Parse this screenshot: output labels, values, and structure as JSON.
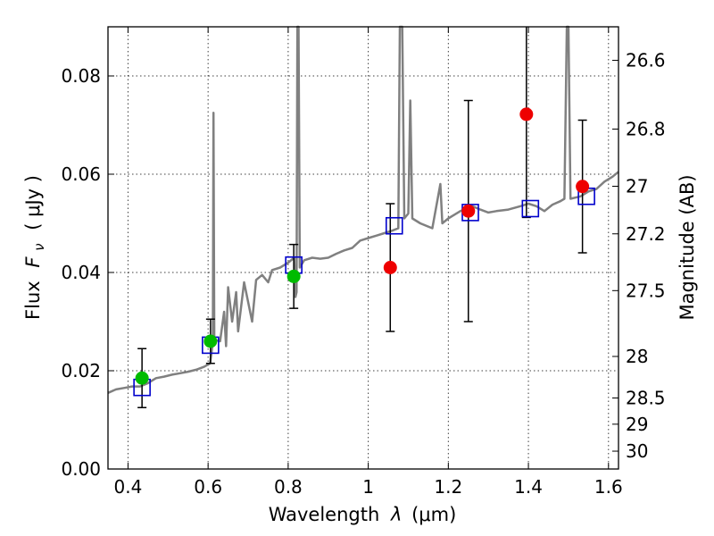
{
  "chart_data": {
    "type": "scatter",
    "xlabel_prefix": "Wavelength",
    "xlabel_symbol": "λ",
    "xlabel_unit": "(μm)",
    "ylabel_prefix": "Flux",
    "ylabel_symbol": "F",
    "ylabel_subscript": "ν",
    "ylabel_unit": "( μJy )",
    "y2label": "Magnitude (AB)",
    "xlim": [
      0.35,
      1.625
    ],
    "ylim": [
      0.0,
      0.09
    ],
    "grid": true,
    "x_ticks": [
      0.4,
      0.6,
      0.8,
      1.0,
      1.2,
      1.4,
      1.6
    ],
    "x_tick_labels": [
      "0.4",
      "0.6",
      "0.8",
      "1",
      "1.2",
      "1.4",
      "1.6"
    ],
    "y_ticks": [
      0.0,
      0.02,
      0.04,
      0.06,
      0.08
    ],
    "y_tick_labels": [
      "0.00",
      "0.02",
      "0.04",
      "0.06",
      "0.08"
    ],
    "y2_tick_labels": [
      "26.6",
      "26.8",
      "27",
      "27.2",
      "27.5",
      "28",
      "28.5",
      "29",
      "30"
    ],
    "colors": {
      "model": "#808080",
      "model_box": "#0000cc",
      "errorbar": "#000000",
      "detection": "#00bb00",
      "nondetection": "#ee0000"
    },
    "observed_points": [
      {
        "x": 0.435,
        "y": 0.0185,
        "yerr_low": 0.006,
        "yerr_high": 0.006,
        "group": "detection"
      },
      {
        "x": 0.606,
        "y": 0.026,
        "yerr_low": 0.0045,
        "yerr_high": 0.0045,
        "group": "detection"
      },
      {
        "x": 0.814,
        "y": 0.0392,
        "yerr_low": 0.0065,
        "yerr_high": 0.0065,
        "group": "detection"
      },
      {
        "x": 1.055,
        "y": 0.041,
        "yerr_low": 0.013,
        "yerr_high": 0.013,
        "group": "nondetection"
      },
      {
        "x": 1.25,
        "y": 0.0525,
        "yerr_low": 0.0225,
        "yerr_high": 0.0225,
        "group": "nondetection"
      },
      {
        "x": 1.395,
        "y": 0.0722,
        "yerr_low": 0.021,
        "yerr_high": 0.0215,
        "group": "nondetection"
      },
      {
        "x": 1.535,
        "y": 0.0575,
        "yerr_low": 0.0135,
        "yerr_high": 0.0135,
        "group": "nondetection"
      }
    ],
    "model_photometry": [
      {
        "x": 0.435,
        "y": 0.0166
      },
      {
        "x": 0.606,
        "y": 0.0252
      },
      {
        "x": 0.814,
        "y": 0.0415
      },
      {
        "x": 1.065,
        "y": 0.0495
      },
      {
        "x": 1.255,
        "y": 0.0522
      },
      {
        "x": 1.405,
        "y": 0.053
      },
      {
        "x": 1.545,
        "y": 0.0555
      }
    ],
    "model_spectrum": [
      [
        0.35,
        0.0155
      ],
      [
        0.37,
        0.0162
      ],
      [
        0.39,
        0.0165
      ],
      [
        0.41,
        0.0168
      ],
      [
        0.43,
        0.0168
      ],
      [
        0.45,
        0.0175
      ],
      [
        0.47,
        0.0185
      ],
      [
        0.49,
        0.0188
      ],
      [
        0.51,
        0.0192
      ],
      [
        0.53,
        0.0195
      ],
      [
        0.55,
        0.0198
      ],
      [
        0.57,
        0.0202
      ],
      [
        0.59,
        0.0208
      ],
      [
        0.605,
        0.0215
      ],
      [
        0.609,
        0.024
      ],
      [
        0.612,
        0.026
      ],
      [
        0.6135,
        0.0725
      ],
      [
        0.6155,
        0.0265
      ],
      [
        0.62,
        0.0262
      ],
      [
        0.63,
        0.026
      ],
      [
        0.64,
        0.032
      ],
      [
        0.645,
        0.025
      ],
      [
        0.65,
        0.037
      ],
      [
        0.66,
        0.03
      ],
      [
        0.67,
        0.036
      ],
      [
        0.675,
        0.028
      ],
      [
        0.69,
        0.038
      ],
      [
        0.7,
        0.034
      ],
      [
        0.71,
        0.03
      ],
      [
        0.72,
        0.0385
      ],
      [
        0.735,
        0.0395
      ],
      [
        0.75,
        0.038
      ],
      [
        0.76,
        0.0405
      ],
      [
        0.78,
        0.041
      ],
      [
        0.8,
        0.042
      ],
      [
        0.815,
        0.043
      ],
      [
        0.818,
        0.035
      ],
      [
        0.821,
        0.036
      ],
      [
        0.823,
        0.09
      ],
      [
        0.826,
        0.09
      ],
      [
        0.829,
        0.041
      ],
      [
        0.84,
        0.0425
      ],
      [
        0.86,
        0.043
      ],
      [
        0.88,
        0.0428
      ],
      [
        0.9,
        0.043
      ],
      [
        0.92,
        0.0438
      ],
      [
        0.94,
        0.0445
      ],
      [
        0.96,
        0.045
      ],
      [
        0.98,
        0.0465
      ],
      [
        1.0,
        0.047
      ],
      [
        1.02,
        0.0475
      ],
      [
        1.04,
        0.048
      ],
      [
        1.06,
        0.0485
      ],
      [
        1.075,
        0.049
      ],
      [
        1.079,
        0.09
      ],
      [
        1.085,
        0.09
      ],
      [
        1.09,
        0.051
      ],
      [
        1.1,
        0.052
      ],
      [
        1.105,
        0.075
      ],
      [
        1.11,
        0.051
      ],
      [
        1.13,
        0.05
      ],
      [
        1.16,
        0.049
      ],
      [
        1.18,
        0.058
      ],
      [
        1.185,
        0.05
      ],
      [
        1.2,
        0.051
      ],
      [
        1.23,
        0.0525
      ],
      [
        1.26,
        0.0535
      ],
      [
        1.28,
        0.0528
      ],
      [
        1.3,
        0.0522
      ],
      [
        1.32,
        0.0525
      ],
      [
        1.35,
        0.0528
      ],
      [
        1.38,
        0.0535
      ],
      [
        1.4,
        0.054
      ],
      [
        1.42,
        0.0535
      ],
      [
        1.44,
        0.0525
      ],
      [
        1.46,
        0.0538
      ],
      [
        1.48,
        0.0545
      ],
      [
        1.49,
        0.055
      ],
      [
        1.496,
        0.09
      ],
      [
        1.5,
        0.09
      ],
      [
        1.505,
        0.055
      ],
      [
        1.53,
        0.0555
      ],
      [
        1.55,
        0.0565
      ],
      [
        1.57,
        0.057
      ],
      [
        1.59,
        0.0585
      ],
      [
        1.61,
        0.0595
      ],
      [
        1.625,
        0.0605
      ]
    ]
  }
}
